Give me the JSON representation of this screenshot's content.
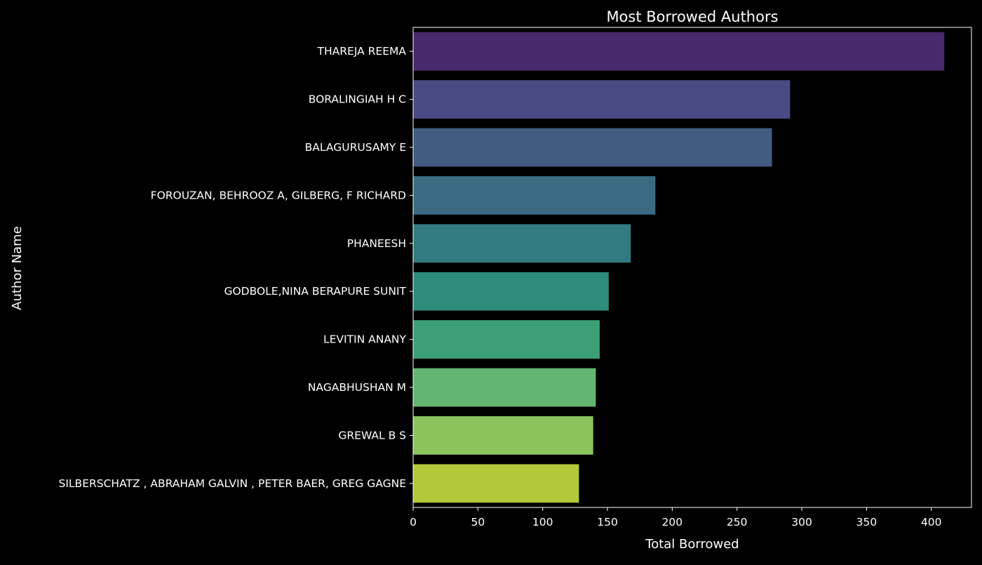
{
  "chart_data": {
    "type": "bar",
    "orientation": "horizontal",
    "title": "Most Borrowed Authors",
    "xlabel": "Total Borrowed",
    "ylabel": "Author Name",
    "xlim": [
      0,
      431
    ],
    "xticks": [
      0,
      50,
      100,
      150,
      200,
      250,
      300,
      350,
      400
    ],
    "grid": false,
    "categories": [
      "THAREJA REEMA",
      "BORALINGIAH H C",
      "BALAGURUSAMY E",
      "FOROUZAN, BEHROOZ A, GILBERG, F RICHARD",
      "PHANEESH",
      "GODBOLE,NINA BERAPURE SUNIT",
      "LEVITIN ANANY",
      "NAGABHUSHAN M",
      "GREWAL B S",
      "SILBERSCHATZ , ABRAHAM GALVIN , PETER BAER, GREG GAGNE"
    ],
    "values": [
      410,
      291,
      277,
      187,
      168,
      151,
      144,
      141,
      139,
      128
    ],
    "colors": [
      "#482a6c",
      "#474a83",
      "#415b82",
      "#3a6b80",
      "#327b80",
      "#2d8c7c",
      "#3d9f78",
      "#63b672",
      "#8bc45c",
      "#b4c93a"
    ],
    "background": "#000000",
    "foreground": "#ffffff"
  }
}
